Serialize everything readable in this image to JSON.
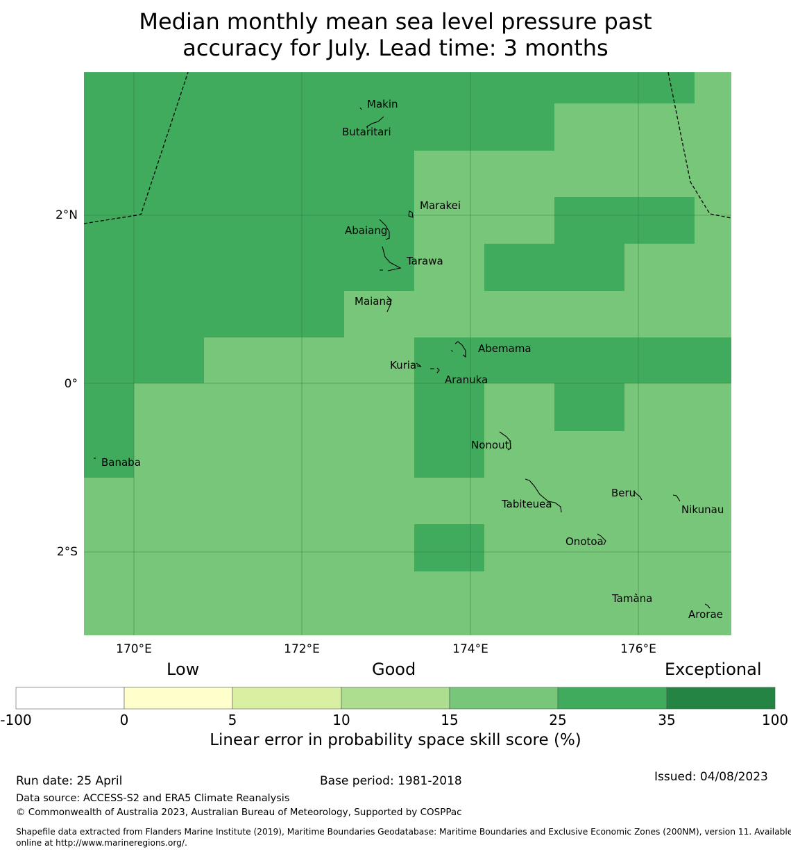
{
  "title": {
    "line1": "Median monthly mean sea level pressure past",
    "line2": "accuracy for July. Lead time: 3 months"
  },
  "map": {
    "lon_range": [
      169.4,
      177.1
    ],
    "lat_range": [
      -3.15,
      3.55
    ],
    "lon_ticks": [
      {
        "value": 170,
        "label": "170°E"
      },
      {
        "value": 172,
        "label": "172°E"
      },
      {
        "value": 174,
        "label": "174°E"
      },
      {
        "value": 176,
        "label": "176°E"
      }
    ],
    "lat_ticks": [
      {
        "value": 2,
        "label": "2°N"
      },
      {
        "value": 0,
        "label": "0°"
      },
      {
        "value": -2,
        "label": "2°S"
      }
    ],
    "colors": {
      "medium_green": "#78c679",
      "dark_green": "#41ab5d"
    },
    "islands": [
      {
        "name": "Makin",
        "lon": 172.99,
        "lat": 3.19
      },
      {
        "name": "Butaritari",
        "lon": 172.79,
        "lat": 3.07
      },
      {
        "name": "Marakei",
        "lon": 173.28,
        "lat": 2.0
      },
      {
        "name": "Abaiang",
        "lon": 172.9,
        "lat": 1.83
      },
      {
        "name": "Tarawa",
        "lon": 173.0,
        "lat": 1.42
      },
      {
        "name": "Maiana",
        "lon": 173.0,
        "lat": 0.92
      },
      {
        "name": "Abemama",
        "lon": 173.87,
        "lat": 0.42
      },
      {
        "name": "Kuria",
        "lon": 173.42,
        "lat": 0.23
      },
      {
        "name": "Aranuka",
        "lon": 173.62,
        "lat": 0.17
      },
      {
        "name": "Nonouti",
        "lon": 174.43,
        "lat": -0.68
      },
      {
        "name": "Banaba",
        "lon": 169.54,
        "lat": -0.88
      },
      {
        "name": "Tabiteuea",
        "lon": 174.83,
        "lat": -1.38
      },
      {
        "name": "Beru",
        "lon": 176.0,
        "lat": -1.33
      },
      {
        "name": "Nikunau",
        "lon": 176.45,
        "lat": -1.38
      },
      {
        "name": "Onotoa",
        "lon": 175.55,
        "lat": -1.87
      },
      {
        "name": "Tamana",
        "lon": 175.98,
        "lat": -2.5
      },
      {
        "name": "Arorae",
        "lon": 176.82,
        "lat": -2.65
      }
    ]
  },
  "colorbar": {
    "categories": [
      "Low",
      "Good",
      "Exceptional"
    ],
    "boundaries": [
      "-100",
      "0",
      "5",
      "10",
      "15",
      "25",
      "35",
      "100"
    ],
    "colors": [
      "#ffffff",
      "#ffffcc",
      "#d9f0a3",
      "#addd8e",
      "#78c679",
      "#41ab5d",
      "#238443"
    ],
    "label": "Linear error in probability space skill score (%)"
  },
  "footer": {
    "run_date": "Run date: 25 April",
    "base_period": "Base period: 1981-2018",
    "issued": "Issued: 04/08/2023",
    "data_source": "Data source: ACCESS-S2 and ERA5 Climate Reanalysis",
    "copyright": "© Commonwealth of Australia 2023, Australian Bureau of Meteorology, Supported by COSPPac",
    "shapefile_line1": "Shapefile data extracted from Flanders Marine Institute (2019), Maritime Boundaries Geodatabase: Maritime Boundaries and Exclusive Economic Zones (200NM), version 11. Available",
    "shapefile_line2": "online at http://www.marineregions.org/."
  }
}
